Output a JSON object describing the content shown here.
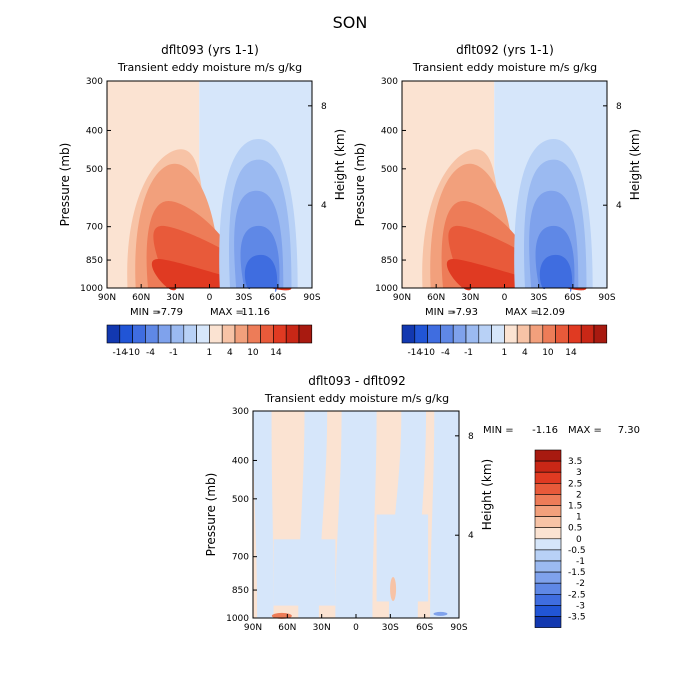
{
  "figure": {
    "title": "SON"
  },
  "colors": {
    "pos": [
      "#fbe3d2",
      "#f7c3a6",
      "#f2a07c",
      "#ed7c58",
      "#e85a3a",
      "#e03a22",
      "#c92716",
      "#a81a10",
      "#7a0b08"
    ],
    "neg": [
      "#d6e6fa",
      "#b8d1f6",
      "#9bbaf1",
      "#7fa2ec",
      "#5f88e6",
      "#3f6de0",
      "#2155d6",
      "#1238b0",
      "#0a1f80"
    ]
  },
  "chart_data": [
    {
      "type": "heatmap",
      "title": "dflt093 (yrs 1-1)",
      "subtitle": "Transient eddy moisture m/s g/kg",
      "ylabel": "Pressure (mb)",
      "ylabel_right": "Height (km)",
      "x_ticks": [
        "90N",
        "60N",
        "30N",
        "0",
        "30S",
        "60S",
        "90S"
      ],
      "y_ticks": [
        "300",
        "400",
        "500",
        "700",
        "850",
        "1000"
      ],
      "y_ticks_right": [
        "8",
        "4"
      ],
      "stats": {
        "min_label": "MIN =",
        "min": "-7.79",
        "max_label": "MAX =",
        "max": "11.16"
      },
      "colorbar_labels": [
        "-14",
        "-10",
        "-4",
        "-1",
        "1",
        "4",
        "10",
        "14"
      ],
      "levels": [
        -14,
        -10,
        -4,
        -1,
        1,
        4,
        10,
        14
      ]
    },
    {
      "type": "heatmap",
      "title": "dflt092 (yrs 1-1)",
      "subtitle": "Transient eddy moisture m/s g/kg",
      "ylabel": "Pressure (mb)",
      "ylabel_right": "Height (km)",
      "x_ticks": [
        "90N",
        "60N",
        "30N",
        "0",
        "30S",
        "60S",
        "90S"
      ],
      "y_ticks": [
        "300",
        "400",
        "500",
        "700",
        "850",
        "1000"
      ],
      "y_ticks_right": [
        "8",
        "4"
      ],
      "stats": {
        "min_label": "MIN =",
        "min": "-7.93",
        "max_label": "MAX =",
        "max": "12.09"
      },
      "colorbar_labels": [
        "-14",
        "-10",
        "-4",
        "-1",
        "1",
        "4",
        "10",
        "14"
      ],
      "levels": [
        -14,
        -10,
        -4,
        -1,
        1,
        4,
        10,
        14
      ]
    },
    {
      "type": "heatmap",
      "title": "dflt093 - dflt092",
      "subtitle": "Transient eddy moisture m/s g/kg",
      "ylabel": "Pressure (mb)",
      "ylabel_right": "Height (km)",
      "x_ticks": [
        "90N",
        "60N",
        "30N",
        "0",
        "30S",
        "60S",
        "90S"
      ],
      "y_ticks": [
        "300",
        "400",
        "500",
        "700",
        "850",
        "1000"
      ],
      "y_ticks_right": [
        "8",
        "4"
      ],
      "stats": {
        "min_label": "MIN =",
        "min": "-1.16",
        "max_label": "MAX =",
        "max": "7.30"
      },
      "colorbar_labels": [
        "3.5",
        "3",
        "2.5",
        "2",
        "1.5",
        "1",
        "0.5",
        "0",
        "-0.5",
        "-1",
        "-1.5",
        "-2",
        "-2.5",
        "-3",
        "-3.5"
      ],
      "levels": [
        -3.5,
        -3,
        -2.5,
        -2,
        -1.5,
        -1,
        -0.5,
        0,
        0.5,
        1,
        1.5,
        2,
        2.5,
        3,
        3.5
      ]
    }
  ]
}
